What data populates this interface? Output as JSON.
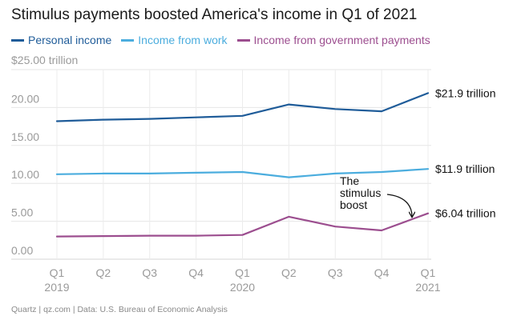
{
  "chart_data": {
    "type": "line",
    "title": "Stimulus payments boosted America's income in Q1 of 2021",
    "y_unit_label": "$25.00 trillion",
    "ylim": [
      0,
      25
    ],
    "y_ticks": [
      {
        "value": 20,
        "label": "20.00"
      },
      {
        "value": 15,
        "label": "15.00"
      },
      {
        "value": 10,
        "label": "10.00"
      },
      {
        "value": 5,
        "label": "5.00"
      },
      {
        "value": 0,
        "label": "0.00"
      }
    ],
    "categories": [
      {
        "q": "Q1",
        "year": "2019"
      },
      {
        "q": "Q2",
        "year": ""
      },
      {
        "q": "Q3",
        "year": ""
      },
      {
        "q": "Q4",
        "year": ""
      },
      {
        "q": "Q1",
        "year": "2020"
      },
      {
        "q": "Q2",
        "year": ""
      },
      {
        "q": "Q3",
        "year": ""
      },
      {
        "q": "Q4",
        "year": ""
      },
      {
        "q": "Q1",
        "year": "2021"
      }
    ],
    "series": [
      {
        "name": "Personal income",
        "color": "#1f5c99",
        "values": [
          18.2,
          18.4,
          18.5,
          18.7,
          18.9,
          20.4,
          19.8,
          19.5,
          21.9
        ],
        "end_label": "$21.9 trillion"
      },
      {
        "name": "Income from work",
        "color": "#4badde",
        "values": [
          11.2,
          11.3,
          11.3,
          11.4,
          11.5,
          10.8,
          11.3,
          11.5,
          11.9
        ],
        "end_label": "$11.9 trillion"
      },
      {
        "name": "Income from government payments",
        "color": "#9c4e8f",
        "values": [
          3.0,
          3.05,
          3.1,
          3.1,
          3.2,
          5.6,
          4.3,
          3.8,
          6.04
        ],
        "end_label": "$6.04 trillion"
      }
    ],
    "annotation": {
      "lines": [
        "The",
        "stimulus",
        "boost"
      ]
    },
    "grid": true
  },
  "source": "Quartz | qz.com | Data: U.S. Bureau of Economic Analysis"
}
